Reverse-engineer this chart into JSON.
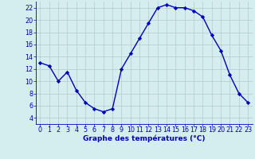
{
  "hours": [
    0,
    1,
    2,
    3,
    4,
    5,
    6,
    7,
    8,
    9,
    10,
    11,
    12,
    13,
    14,
    15,
    16,
    17,
    18,
    19,
    20,
    21,
    22,
    23
  ],
  "temps": [
    13,
    12.5,
    10,
    11.5,
    8.5,
    6.5,
    5.5,
    5,
    5.5,
    12,
    14.5,
    17,
    19.5,
    22,
    22.5,
    22,
    22,
    21.5,
    20.5,
    17.5,
    15,
    11,
    8,
    6.5
  ],
  "line_color": "#0000bb",
  "marker": "D",
  "marker_size": 2.2,
  "bg_color": "#d4eef0",
  "grid_color": "#b8c8c8",
  "xlabel": "Graphe des températures (°C)",
  "xlim": [
    -0.5,
    23.5
  ],
  "ylim": [
    3,
    23
  ],
  "yticks": [
    4,
    6,
    8,
    10,
    12,
    14,
    16,
    18,
    20,
    22
  ],
  "xticks": [
    0,
    1,
    2,
    3,
    4,
    5,
    6,
    7,
    8,
    9,
    10,
    11,
    12,
    13,
    14,
    15,
    16,
    17,
    18,
    19,
    20,
    21,
    22,
    23
  ],
  "label_color": "#0000bb",
  "tick_color": "#0000bb",
  "label_fontsize": 6.5,
  "tick_fontsize": 5.8,
  "linewidth": 1.0
}
